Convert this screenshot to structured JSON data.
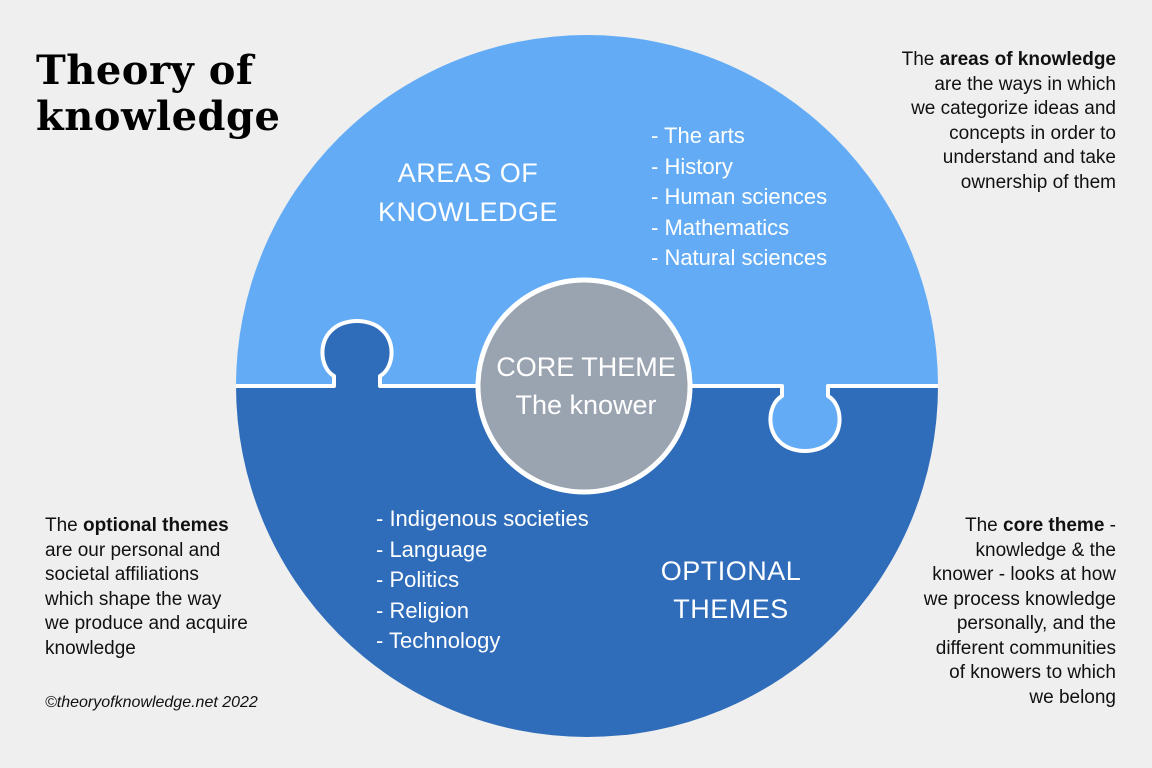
{
  "title": {
    "line1": "Theory of",
    "line2": "knowledge"
  },
  "colors": {
    "background": "#efefef",
    "areas_blue": "#63acf5",
    "optional_blue": "#2f6dbb",
    "core_gray": "#9aa4b1",
    "text_white": "#ffffff"
  },
  "diagram": {
    "areas": {
      "heading_line1": "AREAS OF",
      "heading_line2": "KNOWLEDGE",
      "items": [
        "- The arts",
        "- History",
        "- Human sciences",
        "- Mathematics",
        "- Natural sciences"
      ]
    },
    "optional": {
      "heading_line1": "OPTIONAL",
      "heading_line2": "THEMES",
      "items": [
        "- Indigenous societies",
        "- Language",
        "- Politics",
        "- Religion",
        "- Technology"
      ]
    },
    "core": {
      "line1": "CORE THEME",
      "line2": "The knower"
    }
  },
  "descriptions": {
    "areas": {
      "pre": "The ",
      "bold": "areas of knowledge",
      "lines": [
        "are the ways in which",
        "we categorize ideas and",
        "concepts in order to",
        "understand and take",
        "ownership of them"
      ]
    },
    "optional": {
      "pre": "The ",
      "bold": "optional themes",
      "lines": [
        "are our personal and",
        "societal affiliations",
        "which shape the way",
        "we produce and acquire",
        "knowledge"
      ]
    },
    "core": {
      "pre": "The ",
      "bold": "core theme",
      "post": " -",
      "lines": [
        "knowledge & the",
        "knower - looks at  how",
        "we process knowledge",
        "personally, and the",
        "different communities",
        "of knowers to which",
        "we belong"
      ]
    }
  },
  "copyright": "©theoryofknowledge.net 2022"
}
